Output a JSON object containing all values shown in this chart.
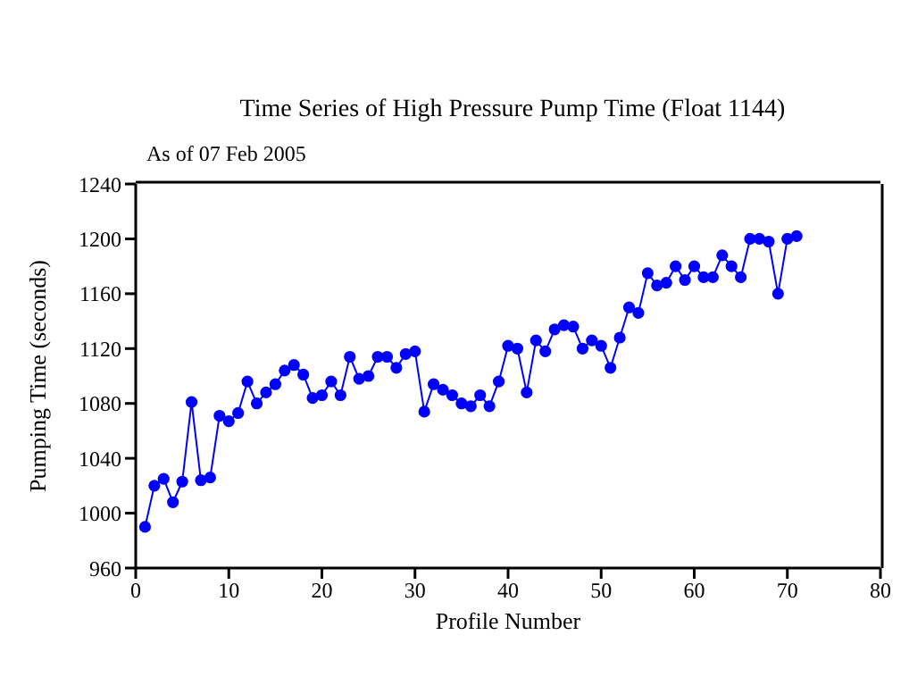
{
  "chart_data": {
    "type": "line",
    "title": "Time Series of High Pressure Pump Time (Float 1144)",
    "subtitle": "As of 07 Feb 2005",
    "xlabel": "Profile Number",
    "ylabel": "Pumping Time (seconds)",
    "x": [
      1,
      2,
      3,
      4,
      5,
      6,
      7,
      8,
      9,
      10,
      11,
      12,
      13,
      14,
      15,
      16,
      17,
      18,
      19,
      20,
      21,
      22,
      23,
      24,
      25,
      26,
      27,
      28,
      29,
      30,
      31,
      32,
      33,
      34,
      35,
      36,
      37,
      38,
      39,
      40,
      41,
      42,
      43,
      44,
      45,
      46,
      47,
      48,
      49,
      50,
      51,
      52,
      53,
      54,
      55,
      56,
      57,
      58,
      59,
      60,
      61,
      62,
      63,
      64,
      65,
      66,
      67,
      68,
      69,
      70,
      71
    ],
    "series": [
      {
        "color": "#0000ff",
        "values": [
          990,
          1020,
          1025,
          1008,
          1023,
          1081,
          1024,
          1026,
          1071,
          1067,
          1073,
          1096,
          1080,
          1088,
          1094,
          1104,
          1108,
          1101,
          1084,
          1086,
          1096,
          1086,
          1114,
          1098,
          1100,
          1114,
          1114,
          1106,
          1116,
          1118,
          1074,
          1094,
          1090,
          1086,
          1080,
          1078,
          1086,
          1078,
          1096,
          1122,
          1120,
          1088,
          1126,
          1118,
          1134,
          1137,
          1136,
          1120,
          1126,
          1122,
          1106,
          1128,
          1150,
          1146,
          1175,
          1166,
          1168,
          1180,
          1170,
          1180,
          1172,
          1172,
          1188,
          1180,
          1172,
          1200,
          1200,
          1198,
          1160,
          1200,
          1202
        ]
      }
    ],
    "xlim": [
      0,
      80
    ],
    "xticks": [
      0,
      10,
      20,
      30,
      40,
      50,
      60,
      70,
      80
    ],
    "ylim": [
      960,
      1240
    ],
    "yticks": [
      960,
      1000,
      1040,
      1080,
      1120,
      1160,
      1200,
      1240
    ],
    "marker": "circle",
    "line_style": "solid",
    "grid": false,
    "legend": false
  }
}
